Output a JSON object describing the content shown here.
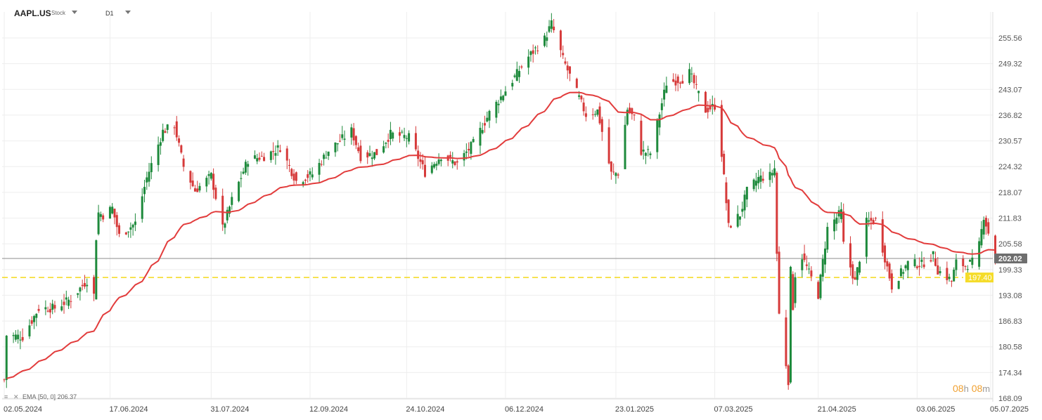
{
  "header": {
    "symbol": "AAPL.US",
    "type": "Stock",
    "timeframe": "D1"
  },
  "legend": {
    "indicator": "EMA",
    "params": "[50, 0]",
    "value": "206.37"
  },
  "timer": {
    "hours": "08",
    "h_unit": "h",
    "minutes": "08",
    "m_unit": "m"
  },
  "colors": {
    "up": "#1e8a3c",
    "down": "#d63a3a",
    "ema": "#e23c3c",
    "price_line": "#8c8c8c",
    "level_line": "#f5dc2a",
    "price_tag_bg": "#6e6e6e",
    "level_tag_bg": "#f5dc2a",
    "grid": "#eeeeee"
  },
  "chart_data": {
    "type": "candlestick",
    "symbol": "AAPL.US",
    "timeframe": "D1",
    "ylim": [
      168.09,
      261.8
    ],
    "y_ticks": [
      "255.56",
      "249.32",
      "243.07",
      "236.82",
      "230.57",
      "224.32",
      "218.07",
      "211.83",
      "205.58",
      "199.33",
      "193.08",
      "186.83",
      "180.58",
      "174.34",
      "168.09"
    ],
    "x_tick_labels": [
      "02.05.2024",
      "17.06.2024",
      "31.07.2024",
      "12.09.2024",
      "24.10.2024",
      "06.12.2024",
      "23.01.2025",
      "07.03.2025",
      "21.04.2025",
      "03.06.2025",
      "05.07.2025"
    ],
    "x_range": [
      "2024-05-02",
      "2025-07-05"
    ],
    "current_price": 202.02,
    "horizontal_level": 197.4,
    "ema": {
      "name": "EMA",
      "period": 50,
      "offset": 0,
      "last": 206.37
    },
    "anchors": [
      [
        "2024-05-02",
        172.5
      ],
      [
        "2024-05-03",
        183.4
      ],
      [
        "2024-05-10",
        183.0
      ],
      [
        "2024-05-17",
        189.9
      ],
      [
        "2024-05-24",
        190.0
      ],
      [
        "2024-05-31",
        192.2
      ],
      [
        "2024-06-07",
        196.7
      ],
      [
        "2024-06-10",
        193.1
      ],
      [
        "2024-06-11",
        207.2
      ],
      [
        "2024-06-12",
        213.1
      ],
      [
        "2024-06-14",
        212.5
      ],
      [
        "2024-06-18",
        214.3
      ],
      [
        "2024-06-21",
        207.5
      ],
      [
        "2024-06-28",
        210.6
      ],
      [
        "2024-07-03",
        221.6
      ],
      [
        "2024-07-10",
        232.9
      ],
      [
        "2024-07-15",
        234.4
      ],
      [
        "2024-07-19",
        224.3
      ],
      [
        "2024-07-24",
        218.5
      ],
      [
        "2024-07-31",
        222.1
      ],
      [
        "2024-08-05",
        209.3
      ],
      [
        "2024-08-09",
        216.2
      ],
      [
        "2024-08-16",
        226.0
      ],
      [
        "2024-08-23",
        226.8
      ],
      [
        "2024-08-30",
        229.0
      ],
      [
        "2024-09-06",
        220.8
      ],
      [
        "2024-09-13",
        222.5
      ],
      [
        "2024-09-20",
        228.2
      ],
      [
        "2024-09-30",
        233.0
      ],
      [
        "2024-10-04",
        226.8
      ],
      [
        "2024-10-11",
        227.6
      ],
      [
        "2024-10-17",
        232.2
      ],
      [
        "2024-10-25",
        231.4
      ],
      [
        "2024-11-01",
        222.9
      ],
      [
        "2024-11-08",
        227.0
      ],
      [
        "2024-11-15",
        225.0
      ],
      [
        "2024-11-22",
        229.9
      ],
      [
        "2024-11-29",
        237.3
      ],
      [
        "2024-12-06",
        242.8
      ],
      [
        "2024-12-16",
        251.0
      ],
      [
        "2024-12-23",
        255.3
      ],
      [
        "2024-12-26",
        259.0
      ],
      [
        "2024-12-31",
        250.4
      ],
      [
        "2025-01-10",
        236.9
      ],
      [
        "2025-01-15",
        237.9
      ],
      [
        "2025-01-21",
        222.6
      ],
      [
        "2025-01-24",
        222.8
      ],
      [
        "2025-01-28",
        238.3
      ],
      [
        "2025-01-31",
        236.0
      ],
      [
        "2025-02-03",
        228.0
      ],
      [
        "2025-02-07",
        227.6
      ],
      [
        "2025-02-14",
        244.6
      ],
      [
        "2025-02-21",
        245.6
      ],
      [
        "2025-02-24",
        247.1
      ],
      [
        "2025-03-03",
        238.0
      ],
      [
        "2025-03-07",
        239.1
      ],
      [
        "2025-03-10",
        227.5
      ],
      [
        "2025-03-13",
        209.7
      ],
      [
        "2025-03-18",
        212.7
      ],
      [
        "2025-03-21",
        218.3
      ],
      [
        "2025-03-26",
        221.5
      ],
      [
        "2025-03-31",
        222.1
      ],
      [
        "2025-04-02",
        223.9
      ],
      [
        "2025-04-03",
        203.2
      ],
      [
        "2025-04-04",
        188.4
      ],
      [
        "2025-04-08",
        172.4
      ],
      [
        "2025-04-09",
        198.9
      ],
      [
        "2025-04-10",
        190.4
      ],
      [
        "2025-04-11",
        198.2
      ],
      [
        "2025-04-14",
        202.5
      ],
      [
        "2025-04-21",
        193.2
      ],
      [
        "2025-04-25",
        209.3
      ],
      [
        "2025-05-01",
        213.3
      ],
      [
        "2025-05-02",
        205.4
      ],
      [
        "2025-05-07",
        196.3
      ],
      [
        "2025-05-12",
        210.8
      ],
      [
        "2025-05-16",
        211.3
      ],
      [
        "2025-05-23",
        195.3
      ],
      [
        "2025-05-30",
        200.9
      ],
      [
        "2025-06-05",
        200.6
      ],
      [
        "2025-06-10",
        202.7
      ],
      [
        "2025-06-12",
        199.2
      ],
      [
        "2025-06-18",
        196.6
      ],
      [
        "2025-06-20",
        201.0
      ],
      [
        "2025-06-24",
        200.3
      ],
      [
        "2025-06-27",
        201.1
      ],
      [
        "2025-06-30",
        205.2
      ],
      [
        "2025-07-02",
        212.4
      ],
      [
        "2025-07-07",
        202.02
      ]
    ]
  }
}
